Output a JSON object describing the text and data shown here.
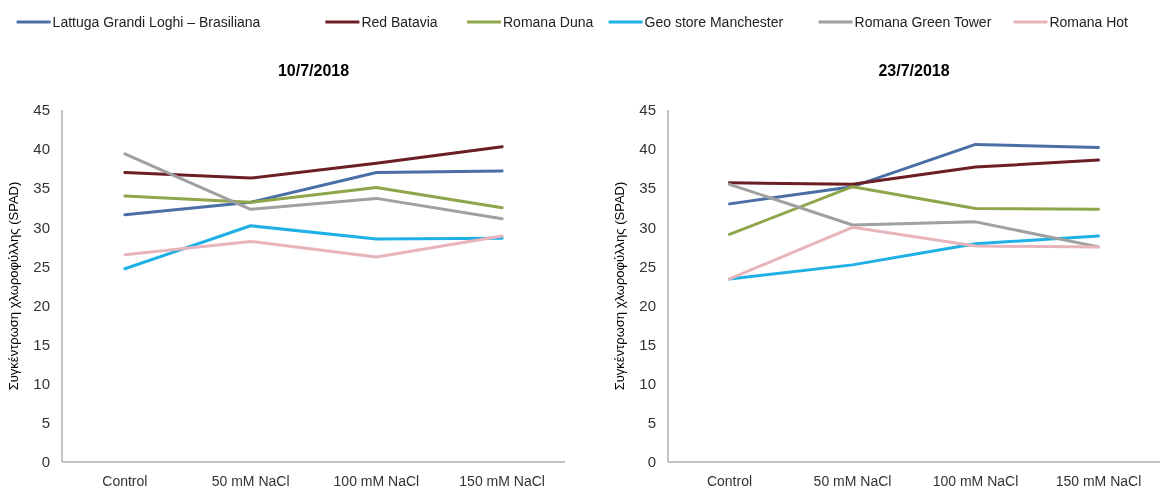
{
  "chart_data": [
    {
      "type": "line",
      "title": "10/7/2018",
      "ylabel": "Συγκέντρωση χλωροφύλλης (SPAD)",
      "categories": [
        "Control",
        "50 mM NaCl",
        "100 mM NaCl",
        "150 mM NaCl"
      ],
      "ylim": [
        0,
        45
      ],
      "yticks": [
        0,
        5,
        10,
        15,
        20,
        25,
        30,
        35,
        40,
        45
      ],
      "legend": "top",
      "grid": false,
      "marker": "none",
      "series": [
        {
          "name": "Lattuga Grandi Loghi – Brasiliana",
          "color": "#4a6fa5",
          "values": [
            31.6,
            33.2,
            37.0,
            37.2
          ]
        },
        {
          "name": "Red Batavia",
          "color": "#6b1f24",
          "values": [
            37.0,
            36.3,
            38.2,
            40.3
          ]
        },
        {
          "name": "Romana Duna",
          "color": "#8ea54a",
          "values": [
            34.0,
            33.2,
            35.1,
            32.5
          ]
        },
        {
          "name": "Geo store Manchester",
          "color": "#1fb0e6",
          "values": [
            24.7,
            30.2,
            28.5,
            28.6
          ]
        },
        {
          "name": "Romana Green Tower",
          "color": "#a0a0a0",
          "values": [
            39.4,
            32.3,
            33.7,
            31.1
          ]
        },
        {
          "name": "Romana Hot",
          "color": "#e8b4bc",
          "values": [
            26.5,
            28.2,
            26.2,
            28.9
          ]
        }
      ]
    },
    {
      "type": "line",
      "title": "23/7/2018",
      "ylabel": "Συγκέντρωση χλωροφύλλης (SPAD)",
      "categories": [
        "Control",
        "50 mM NaCl",
        "100 mM NaCl",
        "150 mM NaCl"
      ],
      "ylim": [
        0,
        45
      ],
      "yticks": [
        0,
        5,
        10,
        15,
        20,
        25,
        30,
        35,
        40,
        45
      ],
      "grid": false,
      "marker": "none",
      "series": [
        {
          "color": "#4a6fa5",
          "values": [
            33.0,
            35.2,
            40.6,
            40.2
          ]
        },
        {
          "color": "#6b1f24",
          "values": [
            35.7,
            35.5,
            37.7,
            38.6
          ]
        },
        {
          "color": "#8ea54a",
          "values": [
            29.1,
            35.2,
            32.4,
            32.3
          ]
        },
        {
          "color": "#1fb0e6",
          "values": [
            23.4,
            25.2,
            27.9,
            28.9
          ]
        },
        {
          "color": "#a0a0a0",
          "values": [
            35.5,
            30.3,
            30.7,
            27.5
          ]
        },
        {
          "color": "#e8b4bc",
          "values": [
            23.4,
            30.0,
            27.6,
            27.5
          ]
        }
      ]
    }
  ]
}
